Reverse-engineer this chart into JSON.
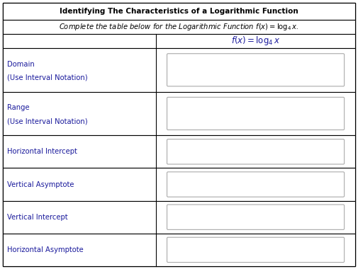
{
  "title": "Identifying The Characteristics of a Logarithmic Function",
  "rows": [
    {
      "label_line1": "Domain",
      "label_line2": "(Use Interval Notation)"
    },
    {
      "label_line1": "Range",
      "label_line2": "(Use Interval Notation)"
    },
    {
      "label_line1": "Horizontal Intercept",
      "label_line2": ""
    },
    {
      "label_line1": "Vertical Asymptote",
      "label_line2": ""
    },
    {
      "label_line1": "Vertical Intercept",
      "label_line2": ""
    },
    {
      "label_line1": "Horizontal Asymptote",
      "label_line2": ""
    }
  ],
  "bg_color": "#ffffff",
  "border_color": "#000000",
  "title_color": "#000000",
  "subtitle_color": "#000000",
  "label_color": "#1a1a9c",
  "header_color": "#1a1a9c",
  "input_box_border": "#aaaaaa",
  "col_split": 0.435,
  "figsize": [
    5.05,
    3.8
  ],
  "dpi": 100,
  "title_fontsize": 7.5,
  "subtitle_fontsize": 7.2,
  "header_fontsize": 8.5,
  "label_fontsize": 7.2
}
